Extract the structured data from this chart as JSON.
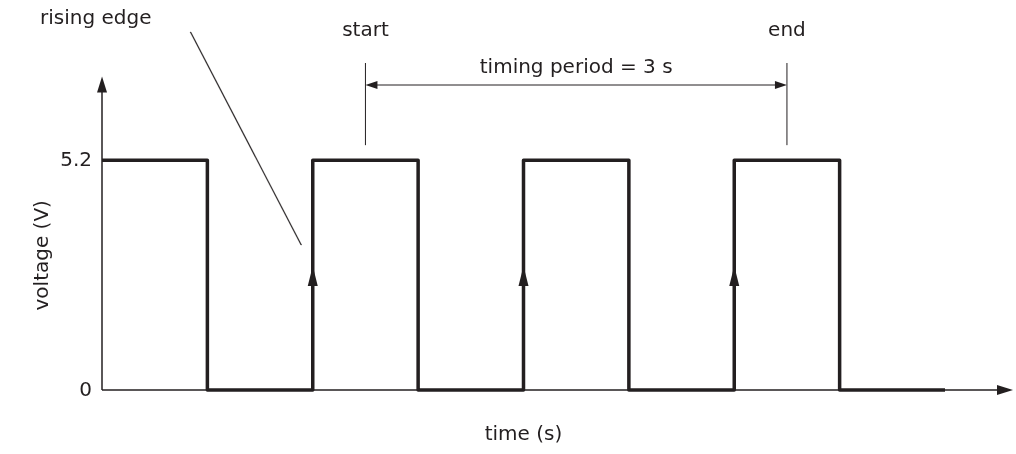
{
  "chart_data": {
    "type": "step",
    "xlabel": "time (s)",
    "ylabel": "voltage (V)",
    "categories": [
      null,
      null,
      null,
      null,
      null,
      null,
      null,
      null,
      null
    ],
    "values": [
      5.2,
      0,
      5.2,
      0,
      5.2,
      0,
      5.2,
      0,
      0
    ],
    "color": "#231f20",
    "ylim": [
      0,
      7
    ],
    "yticks": [
      0,
      5.2
    ],
    "tick_labels": "y",
    "annotations": [
      "rising edge",
      "start",
      "timing period = 3 s",
      "end"
    ]
  }
}
